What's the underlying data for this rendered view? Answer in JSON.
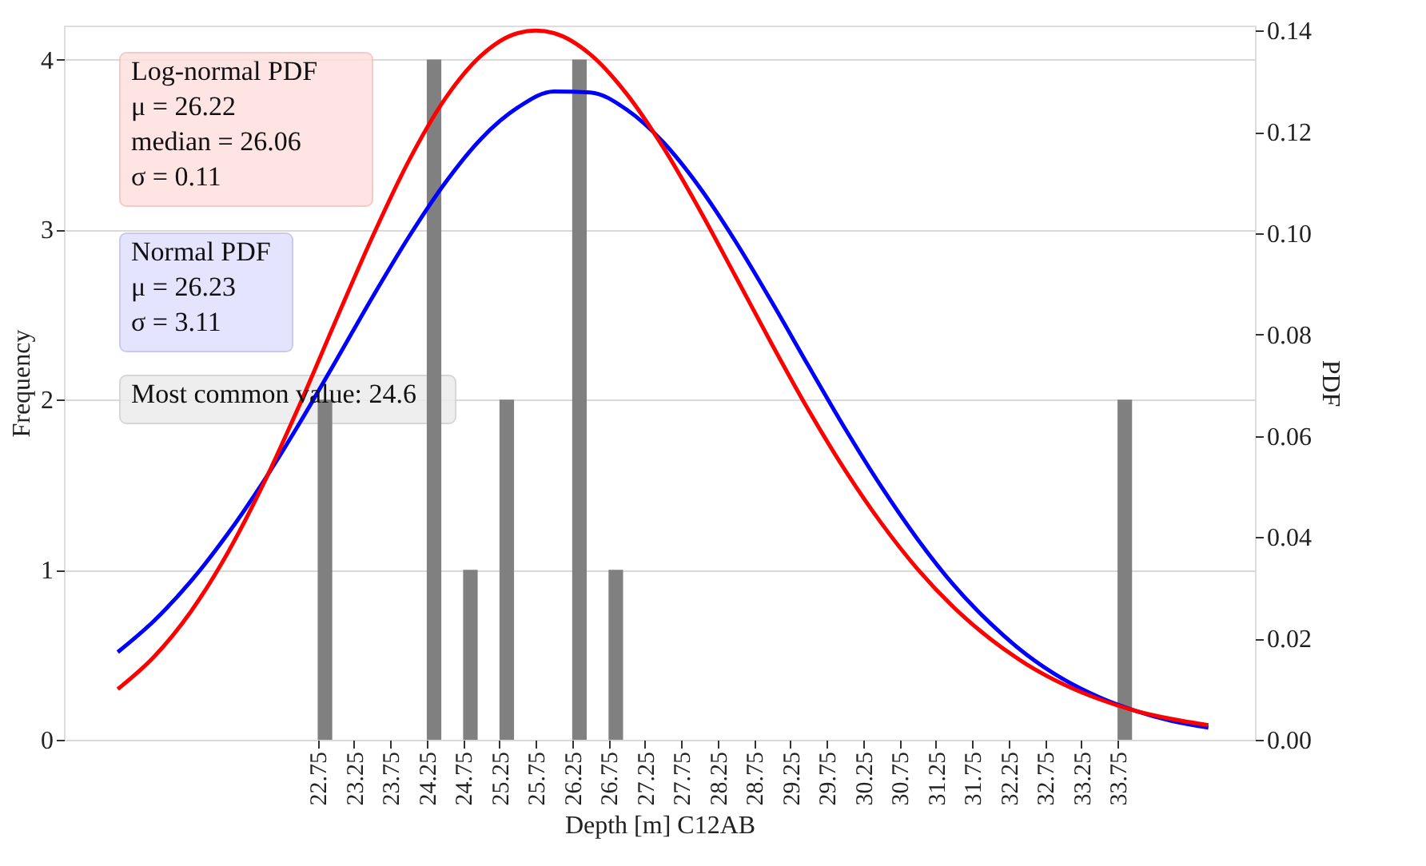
{
  "chart_data": {
    "type": "bar",
    "xlabel": "Depth [m] C12AB",
    "ylabel": "Frequency",
    "y2label": "PDF",
    "xlim": [
      19.26,
      35.64
    ],
    "ylim": [
      0,
      4.2
    ],
    "y2lim": [
      0,
      0.141
    ],
    "xticks": [
      {
        "value": 22.75,
        "label": "22.75"
      },
      {
        "value": 23.25,
        "label": "23.25"
      },
      {
        "value": 23.75,
        "label": "23.75"
      },
      {
        "value": 24.25,
        "label": "24.25"
      },
      {
        "value": 24.75,
        "label": "24.75"
      },
      {
        "value": 25.25,
        "label": "25.25"
      },
      {
        "value": 25.75,
        "label": "25.75"
      },
      {
        "value": 26.25,
        "label": "26.25"
      },
      {
        "value": 26.75,
        "label": "26.75"
      },
      {
        "value": 27.25,
        "label": "27.25"
      },
      {
        "value": 27.75,
        "label": "27.75"
      },
      {
        "value": 28.25,
        "label": "28.25"
      },
      {
        "value": 28.75,
        "label": "28.75"
      },
      {
        "value": 29.25,
        "label": "29.25"
      },
      {
        "value": 29.75,
        "label": "29.75"
      },
      {
        "value": 30.25,
        "label": "30.25"
      },
      {
        "value": 30.75,
        "label": "30.75"
      },
      {
        "value": 31.25,
        "label": "31.25"
      },
      {
        "value": 31.75,
        "label": "31.75"
      },
      {
        "value": 32.25,
        "label": "32.25"
      },
      {
        "value": 32.75,
        "label": "32.75"
      },
      {
        "value": 33.25,
        "label": "33.25"
      },
      {
        "value": 33.75,
        "label": "33.75"
      }
    ],
    "yticks": [
      0,
      1,
      2,
      3,
      4
    ],
    "y2ticks": [
      {
        "value": 0,
        "label": "0.00"
      },
      {
        "value": 0.02,
        "label": "0.02"
      },
      {
        "value": 0.04,
        "label": "0.04"
      },
      {
        "value": 0.06,
        "label": "0.06"
      },
      {
        "value": 0.08,
        "label": "0.08"
      },
      {
        "value": 0.1,
        "label": "0.10"
      },
      {
        "value": 0.12,
        "label": "0.12"
      },
      {
        "value": 0.14,
        "label": "0.14"
      }
    ],
    "grid": "y",
    "series": [
      {
        "color": "#808080",
        "x": [
          22.85,
          24.35,
          24.85,
          25.35,
          26.35,
          26.85,
          33.85
        ],
        "values": [
          2,
          4,
          1,
          2,
          4,
          1,
          2
        ]
      },
      {
        "type": "line",
        "axis": "y2",
        "color": "#0000ff",
        "x": [
          20,
          20.5,
          21,
          21.5,
          22,
          22.5,
          23,
          23.5,
          24,
          24.5,
          25,
          25.5,
          26,
          26.5,
          27,
          27.5,
          28,
          28.5,
          29,
          29.5,
          30,
          30.5,
          31,
          31.5,
          32,
          32.5,
          33,
          33.5,
          34,
          34.5,
          35
        ],
        "values": [
          0.0173,
          0.0235,
          0.0312,
          0.0404,
          0.0509,
          0.0625,
          0.0748,
          0.0873,
          0.0992,
          0.1099,
          0.1187,
          0.1248,
          0.128,
          0.1278,
          0.1244,
          0.118,
          0.1091,
          0.0983,
          0.0863,
          0.0738,
          0.0615,
          0.05,
          0.0396,
          0.0305,
          0.023,
          0.0168,
          0.012,
          0.0084,
          0.0057,
          0.0037,
          0.0024
        ]
      },
      {
        "type": "line",
        "axis": "y2",
        "color": "#ff0000",
        "x": [
          20,
          20.5,
          21,
          21.5,
          22,
          22.5,
          23,
          23.5,
          24,
          24.5,
          25,
          25.5,
          25.75,
          26,
          26.5,
          27,
          27.5,
          28,
          28.5,
          29,
          29.5,
          30,
          30.5,
          31,
          31.5,
          32,
          32.5,
          33,
          33.5,
          34,
          34.5,
          35
        ],
        "values": [
          0.01,
          0.0164,
          0.0252,
          0.0366,
          0.0504,
          0.0661,
          0.0828,
          0.0992,
          0.1142,
          0.1265,
          0.1351,
          0.1395,
          0.14,
          0.1395,
          0.1353,
          0.1275,
          0.117,
          0.1047,
          0.0914,
          0.078,
          0.0651,
          0.0533,
          0.0428,
          0.0337,
          0.0261,
          0.0199,
          0.0149,
          0.011,
          0.008,
          0.0057,
          0.0041,
          0.0029
        ]
      }
    ],
    "annotations": [
      "Log-normal PDF\nμ = 26.22\nmedian = 26.06\nσ = 0.11",
      "Normal PDF\nμ = 26.23\nσ = 3.11",
      "Most common value: 24.6"
    ]
  }
}
